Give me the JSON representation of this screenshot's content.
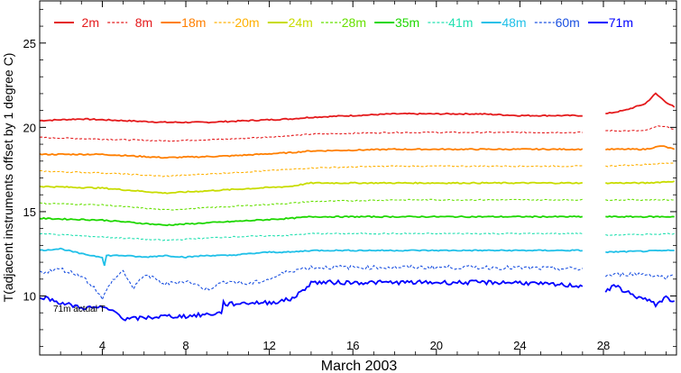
{
  "chart_data": {
    "type": "line",
    "xlabel": "March 2003",
    "ylabel": "T(adjacent instruments offset by 1 degree C)",
    "xlim": [
      1,
      31.5
    ],
    "ylim": [
      6.5,
      27.5
    ],
    "x_ticks": [
      4,
      8,
      12,
      16,
      20,
      24,
      28
    ],
    "y_ticks": [
      10,
      15,
      20,
      25
    ],
    "annotation": "71m actual T",
    "gap": [
      27.0,
      28.1
    ],
    "series": [
      {
        "name": "2m",
        "color": "#e41a1c",
        "dash": "solid",
        "points": [
          [
            1,
            20.4
          ],
          [
            3,
            20.5
          ],
          [
            5,
            20.4
          ],
          [
            7,
            20.3
          ],
          [
            9,
            20.3
          ],
          [
            11,
            20.4
          ],
          [
            13,
            20.5
          ],
          [
            14,
            20.6
          ],
          [
            18,
            20.8
          ],
          [
            22,
            20.8
          ],
          [
            24,
            20.7
          ],
          [
            27,
            20.7
          ],
          [
            28.1,
            20.8
          ],
          [
            29,
            21.0
          ],
          [
            30,
            21.4
          ],
          [
            30.5,
            22.0
          ],
          [
            31,
            21.5
          ],
          [
            31.4,
            21.2
          ]
        ]
      },
      {
        "name": "8m",
        "color": "#e41a1c",
        "dash": "3,2",
        "points": [
          [
            1,
            19.4
          ],
          [
            4,
            19.3
          ],
          [
            7,
            19.2
          ],
          [
            10,
            19.3
          ],
          [
            13,
            19.5
          ],
          [
            14,
            19.6
          ],
          [
            18,
            19.7
          ],
          [
            22,
            19.7
          ],
          [
            27,
            19.7
          ],
          [
            28.1,
            19.8
          ],
          [
            30,
            19.8
          ],
          [
            30.7,
            20.1
          ],
          [
            31.4,
            19.9
          ]
        ]
      },
      {
        "name": "18m",
        "color": "#ff7f00",
        "dash": "solid",
        "points": [
          [
            1,
            18.4
          ],
          [
            4,
            18.4
          ],
          [
            7,
            18.2
          ],
          [
            10,
            18.3
          ],
          [
            13,
            18.5
          ],
          [
            14,
            18.6
          ],
          [
            18,
            18.7
          ],
          [
            22,
            18.7
          ],
          [
            27,
            18.7
          ],
          [
            28.1,
            18.7
          ],
          [
            30,
            18.7
          ],
          [
            30.8,
            18.9
          ],
          [
            31.4,
            18.7
          ]
        ]
      },
      {
        "name": "20m",
        "color": "#ffb000",
        "dash": "3,2",
        "points": [
          [
            1,
            17.4
          ],
          [
            4,
            17.3
          ],
          [
            7,
            17.1
          ],
          [
            10,
            17.3
          ],
          [
            13,
            17.5
          ],
          [
            14,
            17.6
          ],
          [
            18,
            17.7
          ],
          [
            22,
            17.7
          ],
          [
            27,
            17.7
          ],
          [
            28.1,
            17.7
          ],
          [
            30,
            17.8
          ],
          [
            31.4,
            17.9
          ]
        ]
      },
      {
        "name": "24m",
        "color": "#c8dc00",
        "dash": "solid",
        "points": [
          [
            1,
            16.5
          ],
          [
            4,
            16.4
          ],
          [
            7,
            16.1
          ],
          [
            10,
            16.3
          ],
          [
            13,
            16.5
          ],
          [
            14,
            16.7
          ],
          [
            18,
            16.7
          ],
          [
            22,
            16.7
          ],
          [
            27,
            16.7
          ],
          [
            28.1,
            16.7
          ],
          [
            30,
            16.7
          ],
          [
            31.4,
            16.8
          ]
        ]
      },
      {
        "name": "28m",
        "color": "#66e000",
        "dash": "3,2",
        "points": [
          [
            1,
            15.5
          ],
          [
            4,
            15.4
          ],
          [
            7,
            15.1
          ],
          [
            10,
            15.3
          ],
          [
            13,
            15.5
          ],
          [
            14,
            15.6
          ],
          [
            18,
            15.7
          ],
          [
            22,
            15.7
          ],
          [
            27,
            15.7
          ],
          [
            28.1,
            15.7
          ],
          [
            31.4,
            15.7
          ]
        ]
      },
      {
        "name": "35m",
        "color": "#1ed700",
        "dash": "solid",
        "points": [
          [
            1,
            14.6
          ],
          [
            4,
            14.5
          ],
          [
            7,
            14.2
          ],
          [
            10,
            14.4
          ],
          [
            13,
            14.6
          ],
          [
            14,
            14.7
          ],
          [
            18,
            14.7
          ],
          [
            22,
            14.7
          ],
          [
            27,
            14.7
          ],
          [
            28.1,
            14.7
          ],
          [
            31.4,
            14.7
          ]
        ]
      },
      {
        "name": "41m",
        "color": "#20e0b0",
        "dash": "3,2",
        "points": [
          [
            1,
            13.7
          ],
          [
            4,
            13.5
          ],
          [
            7,
            13.3
          ],
          [
            10,
            13.5
          ],
          [
            13,
            13.6
          ],
          [
            14,
            13.7
          ],
          [
            18,
            13.7
          ],
          [
            22,
            13.7
          ],
          [
            27,
            13.7
          ],
          [
            28.1,
            13.6
          ],
          [
            31.4,
            13.7
          ]
        ]
      },
      {
        "name": "48m",
        "color": "#20c0e8",
        "dash": "solid",
        "points": [
          [
            1,
            12.7
          ],
          [
            2,
            12.8
          ],
          [
            3,
            12.5
          ],
          [
            4,
            12.3
          ],
          [
            4.1,
            11.8
          ],
          [
            4.2,
            12.4
          ],
          [
            5,
            12.4
          ],
          [
            6,
            12.3
          ],
          [
            7,
            12.4
          ],
          [
            8,
            12.3
          ],
          [
            9,
            12.4
          ],
          [
            10,
            12.4
          ],
          [
            11,
            12.5
          ],
          [
            12,
            12.6
          ],
          [
            13,
            12.6
          ],
          [
            14,
            12.7
          ],
          [
            18,
            12.7
          ],
          [
            22,
            12.7
          ],
          [
            27,
            12.7
          ],
          [
            28.1,
            12.6
          ],
          [
            31.4,
            12.7
          ]
        ]
      },
      {
        "name": "60m",
        "color": "#1a50e0",
        "dash": "3,2",
        "points": [
          [
            1,
            11.4
          ],
          [
            2,
            11.6
          ],
          [
            3,
            11.2
          ],
          [
            3.7,
            10.4
          ],
          [
            4,
            9.8
          ],
          [
            4.4,
            10.8
          ],
          [
            5,
            11.5
          ],
          [
            5.5,
            10.4
          ],
          [
            6,
            11.3
          ],
          [
            7,
            10.7
          ],
          [
            8,
            10.9
          ],
          [
            9,
            10.4
          ],
          [
            10,
            10.9
          ],
          [
            11,
            10.7
          ],
          [
            12,
            11.0
          ],
          [
            13,
            11.5
          ],
          [
            14,
            11.7
          ],
          [
            18,
            11.7
          ],
          [
            22,
            11.7
          ],
          [
            27,
            11.6
          ],
          [
            28.1,
            11.2
          ],
          [
            29,
            11.3
          ],
          [
            30,
            11.3
          ],
          [
            31,
            11.1
          ],
          [
            31.4,
            11.2
          ]
        ]
      },
      {
        "name": "71m",
        "color": "#0000ff",
        "dash": "solid",
        "points": [
          [
            1,
            10.0
          ],
          [
            2,
            9.6
          ],
          [
            3,
            9.3
          ],
          [
            4,
            9.3
          ],
          [
            4.8,
            9.0
          ],
          [
            5,
            8.6
          ],
          [
            6,
            8.7
          ],
          [
            7,
            8.8
          ],
          [
            8,
            8.8
          ],
          [
            9,
            8.9
          ],
          [
            9.7,
            9.0
          ],
          [
            9.8,
            9.6
          ],
          [
            10,
            9.5
          ],
          [
            11,
            9.6
          ],
          [
            12,
            9.6
          ],
          [
            13,
            9.8
          ],
          [
            13.5,
            10.2
          ],
          [
            14,
            10.8
          ],
          [
            18,
            10.8
          ],
          [
            22,
            10.8
          ],
          [
            24,
            10.8
          ],
          [
            25,
            10.7
          ],
          [
            27,
            10.6
          ],
          [
            28.1,
            10.3
          ],
          [
            28.6,
            10.6
          ],
          [
            29,
            10.3
          ],
          [
            29.5,
            10.0
          ],
          [
            30,
            9.8
          ],
          [
            30.5,
            9.5
          ],
          [
            31,
            9.9
          ],
          [
            31.4,
            9.7
          ]
        ]
      }
    ]
  }
}
